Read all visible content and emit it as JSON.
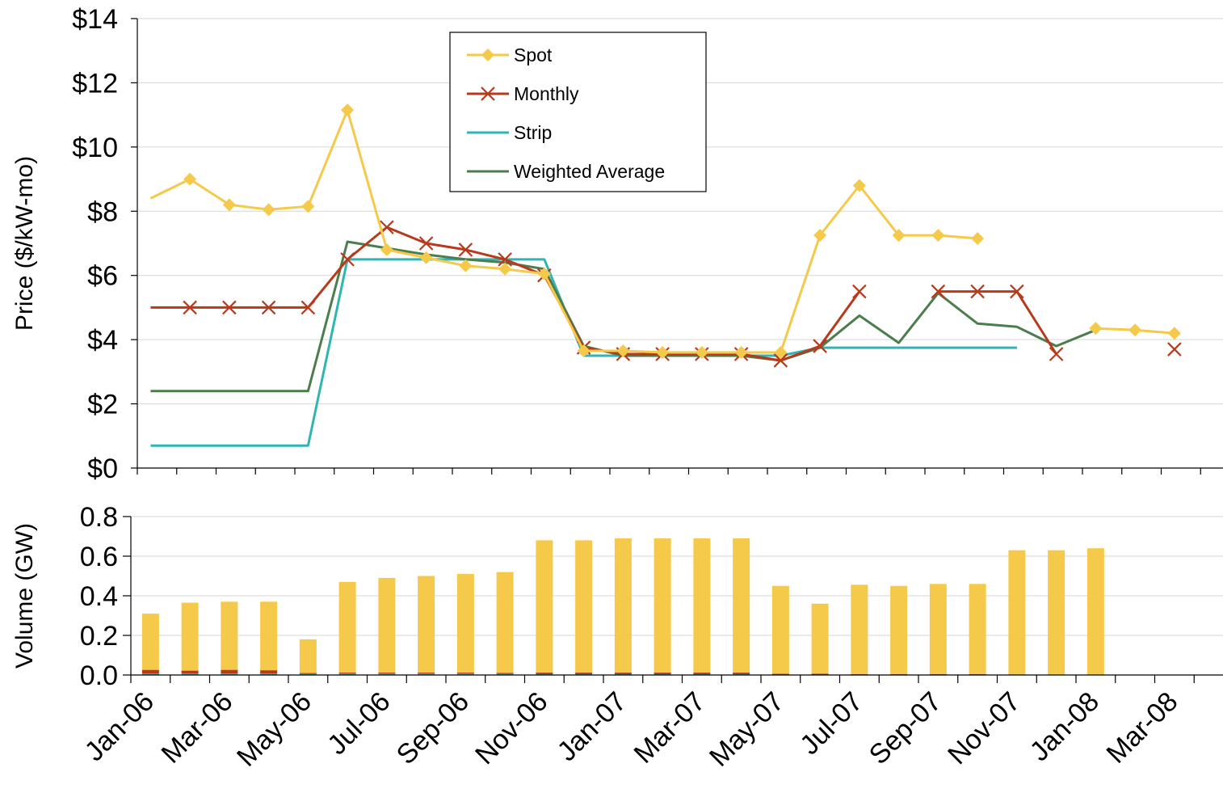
{
  "chart_data": [
    {
      "type": "line",
      "ylabel": "Price ($/kW-mo)",
      "ylim": [
        0,
        14
      ],
      "y_ticks": [
        "$0",
        "$2",
        "$4",
        "$6",
        "$8",
        "$10",
        "$12",
        "$14"
      ],
      "y_tick_values": [
        0,
        2,
        4,
        6,
        8,
        10,
        12,
        14
      ],
      "grid": true,
      "legend": "top-center",
      "categories": [
        "Jan-06",
        "Feb-06",
        "Mar-06",
        "Apr-06",
        "May-06",
        "Jun-06",
        "Jul-06",
        "Aug-06",
        "Sep-06",
        "Oct-06",
        "Nov-06",
        "Dec-06",
        "Jan-07",
        "Feb-07",
        "Mar-07",
        "Apr-07",
        "May-07",
        "Jun-07",
        "Jul-07",
        "Aug-07",
        "Sep-07",
        "Oct-07",
        "Nov-07",
        "Dec-07",
        "Jan-08",
        "Feb-08",
        "Mar-08"
      ],
      "series": [
        {
          "name": "Spot",
          "color": "#F5C94A",
          "marker": "diamond",
          "values": [
            8.4,
            9.0,
            8.2,
            8.05,
            8.15,
            11.15,
            6.8,
            6.55,
            6.3,
            6.2,
            6.05,
            3.65,
            3.65,
            3.6,
            3.6,
            3.6,
            3.6,
            7.25,
            8.8,
            7.25,
            7.25,
            7.15,
            null,
            null,
            4.35,
            4.3,
            4.2
          ],
          "marked_from": 1
        },
        {
          "name": "Monthly",
          "color": "#B73A1D",
          "marker": "x",
          "values": [
            5.0,
            5.0,
            5.0,
            5.0,
            5.0,
            6.5,
            7.5,
            7.0,
            6.8,
            6.5,
            6.0,
            3.75,
            3.55,
            3.55,
            3.55,
            3.55,
            3.35,
            3.8,
            5.5,
            null,
            5.5,
            5.5,
            5.5,
            3.55,
            null,
            null,
            3.7
          ],
          "marked_from": 1
        },
        {
          "name": "Strip",
          "color": "#30B5B5",
          "marker": "none",
          "values": [
            0.7,
            0.7,
            0.7,
            0.7,
            0.7,
            6.5,
            6.5,
            6.5,
            6.5,
            6.5,
            6.5,
            3.5,
            3.5,
            3.5,
            3.5,
            3.5,
            3.5,
            3.75,
            3.75,
            3.75,
            3.75,
            3.75,
            3.75,
            null,
            null,
            null,
            null
          ]
        },
        {
          "name": "Weighted Average",
          "color": "#4C7D4C",
          "marker": "none",
          "values": [
            2.4,
            2.4,
            2.4,
            2.4,
            2.4,
            7.05,
            6.85,
            6.65,
            6.5,
            6.4,
            6.2,
            3.8,
            3.5,
            3.5,
            3.5,
            3.5,
            3.35,
            3.75,
            4.75,
            3.9,
            5.45,
            4.5,
            4.4,
            3.8,
            4.3,
            null,
            null
          ]
        }
      ]
    },
    {
      "type": "bar",
      "stacked": true,
      "ylabel": "Volume (GW)",
      "ylim": [
        0,
        0.8
      ],
      "y_ticks": [
        "0.0",
        "0.2",
        "0.4",
        "0.6",
        "0.8"
      ],
      "y_tick_values": [
        0,
        0.2,
        0.4,
        0.6,
        0.8
      ],
      "grid": true,
      "categories": [
        "Jan-06",
        "Feb-06",
        "Mar-06",
        "Apr-06",
        "May-06",
        "Jun-06",
        "Jul-06",
        "Aug-06",
        "Sep-06",
        "Oct-06",
        "Nov-06",
        "Dec-06",
        "Jan-07",
        "Feb-07",
        "Mar-07",
        "Apr-07",
        "May-07",
        "Jun-07",
        "Jul-07",
        "Aug-07",
        "Sep-07",
        "Oct-07",
        "Nov-07",
        "Dec-07",
        "Jan-08",
        "Feb-08",
        "Mar-08"
      ],
      "x_tick_labels": [
        "Jan-06",
        "Mar-06",
        "May-06",
        "Jul-06",
        "Sep-06",
        "Nov-06",
        "Jan-07",
        "Mar-07",
        "May-07",
        "Jul-07",
        "Sep-07",
        "Nov-07",
        "Jan-08",
        "Mar-08"
      ],
      "series": [
        {
          "name": "Strip",
          "color": "#30B5B5",
          "values": [
            0.008,
            0.008,
            0.008,
            0.008,
            0.005,
            0.008,
            0.008,
            0.008,
            0.008,
            0.005,
            0.004,
            0.004,
            0.004,
            0.004,
            0.004,
            0.004,
            0.002,
            0.002,
            0.002,
            0.002,
            0.002,
            0.002,
            0.001,
            0.001,
            0.001,
            0,
            0
          ]
        },
        {
          "name": "Monthly",
          "color": "#B73A1D",
          "values": [
            0.018,
            0.014,
            0.018,
            0.016,
            0.005,
            0.004,
            0.004,
            0.004,
            0.004,
            0.006,
            0.008,
            0.008,
            0.008,
            0.008,
            0.008,
            0.008,
            0.004,
            0.005,
            0.002,
            0.002,
            0.002,
            0.002,
            0.002,
            0.001,
            0.001,
            0,
            0
          ]
        },
        {
          "name": "Spot",
          "color": "#F5C94A",
          "values": [
            0.284,
            0.343,
            0.344,
            0.346,
            0.17,
            0.458,
            0.478,
            0.488,
            0.498,
            0.509,
            0.668,
            0.668,
            0.678,
            0.678,
            0.678,
            0.678,
            0.444,
            0.353,
            0.452,
            0.446,
            0.456,
            0.456,
            0.627,
            0.628,
            0.638,
            0,
            0
          ]
        }
      ]
    }
  ]
}
